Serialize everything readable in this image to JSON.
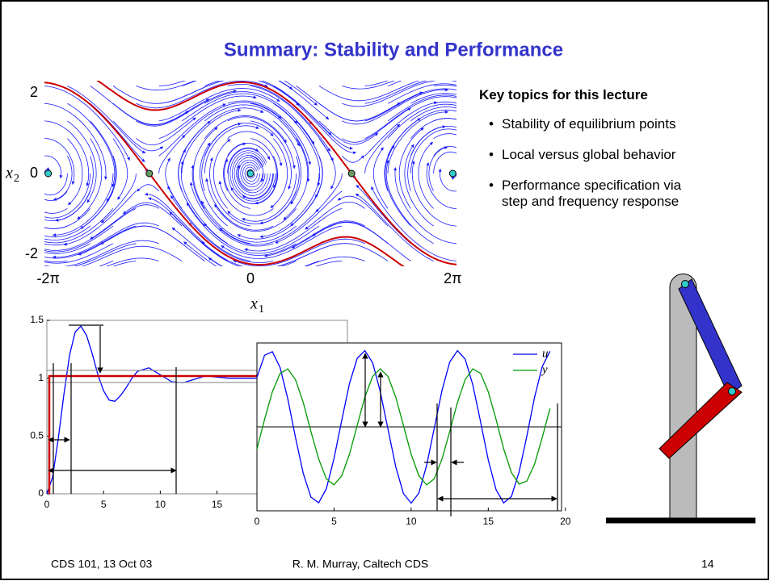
{
  "header": {
    "title": "Summary: Stability and Performance"
  },
  "key_topics": {
    "heading": "Key topics for this lecture",
    "items": [
      "Stability of equilibrium points",
      "Local versus global behavior",
      "Performance specification via step and frequency response"
    ]
  },
  "phase_portrait": {
    "type": "stream",
    "xlabel": "x",
    "xlabel_sub": "1",
    "ylabel": "x",
    "ylabel_sub": "2",
    "xlim": [
      -6.4,
      6.4
    ],
    "ylim": [
      -2.3,
      2.3
    ],
    "xticks": [
      {
        "value": -6.283,
        "label": "-2π"
      },
      0,
      {
        "value": 6.283,
        "label": "2π"
      }
    ],
    "yticks": [
      -2,
      0,
      2
    ],
    "stream_color": "#1a1aff",
    "separatrix_color": "#cc0000",
    "equilibria": {
      "x": [
        -6.283,
        -3.142,
        0,
        3.142,
        6.283
      ],
      "y": [
        0,
        0,
        0,
        0,
        0
      ],
      "colors": [
        "#33cccc",
        "#669966",
        "#33cccc",
        "#669966",
        "#33cccc"
      ]
    }
  },
  "step_response": {
    "type": "line",
    "xlim": [
      0,
      26.5
    ],
    "ylim": [
      0,
      1.5
    ],
    "xticks": [
      0,
      5,
      10,
      15
    ],
    "yticks": [
      0,
      0.5,
      1,
      1.5
    ],
    "x": [
      0,
      0.5,
      1,
      1.5,
      2,
      2.5,
      3,
      3.5,
      4,
      4.5,
      5,
      5.5,
      6,
      6.5,
      7,
      7.5,
      8,
      9,
      10,
      11,
      12,
      13,
      14,
      16,
      18,
      20
    ],
    "series": [
      {
        "color": "#0000ff",
        "values": [
          0,
          0.14,
          0.47,
          0.86,
          1.2,
          1.4,
          1.45,
          1.37,
          1.21,
          1.03,
          0.89,
          0.81,
          0.8,
          0.85,
          0.92,
          1.0,
          1.06,
          1.09,
          1.03,
          0.97,
          0.96,
          0.99,
          1.02,
          1.0,
          1.0,
          1.0
        ]
      }
    ]
  },
  "frequency_response": {
    "type": "line",
    "xlim": [
      0,
      19.75
    ],
    "ylim": [
      -1.1,
      1.1
    ],
    "xticks": [
      0,
      5,
      10,
      15,
      20
    ],
    "x": [
      0,
      0.5,
      1,
      1.5,
      2,
      2.5,
      3,
      3.5,
      4,
      4.5,
      5,
      5.5,
      6,
      6.5,
      7,
      7.5,
      8,
      8.5,
      9,
      9.5,
      10,
      10.5,
      11,
      11.5,
      12,
      12.5,
      13,
      13.5,
      14,
      14.5,
      15,
      15.5,
      16,
      16.5,
      17,
      17.5,
      18,
      18.5,
      19
    ],
    "series": [
      {
        "name": "u",
        "color": "#0000ff",
        "values": [
          0.648,
          0.939,
          0.986,
          0.778,
          0.367,
          -0.139,
          -0.609,
          -0.92,
          -0.994,
          -0.811,
          -0.414,
          0.088,
          0.567,
          0.899,
          0.999,
          0.841,
          0.459,
          -0.036,
          -0.522,
          -0.874,
          -1.0,
          -0.868,
          -0.504,
          -0.016,
          0.479,
          0.85,
          0.999,
          0.89,
          0.55,
          0.067,
          -0.433,
          -0.822,
          -0.996,
          -0.912,
          -0.59,
          -0.118,
          0.388,
          0.79,
          0.991
        ]
      },
      {
        "name": "y",
        "color": "#009900",
        "values": [
          -0.29,
          0.1,
          0.46,
          0.7,
          0.76,
          0.62,
          0.32,
          -0.06,
          -0.42,
          -0.68,
          -0.76,
          -0.64,
          -0.36,
          0.02,
          0.39,
          0.66,
          0.76,
          0.66,
          0.39,
          0.02,
          -0.36,
          -0.64,
          -0.76,
          -0.68,
          -0.42,
          -0.06,
          0.32,
          0.62,
          0.76,
          0.7,
          0.46,
          0.1,
          -0.29,
          -0.6,
          -0.75,
          -0.71,
          -0.49,
          -0.14,
          0.24
        ]
      }
    ]
  },
  "footer": {
    "left": "CDS 101, 13 Oct 03",
    "center": "R. M. Murray, Caltech CDS",
    "right": "14"
  }
}
